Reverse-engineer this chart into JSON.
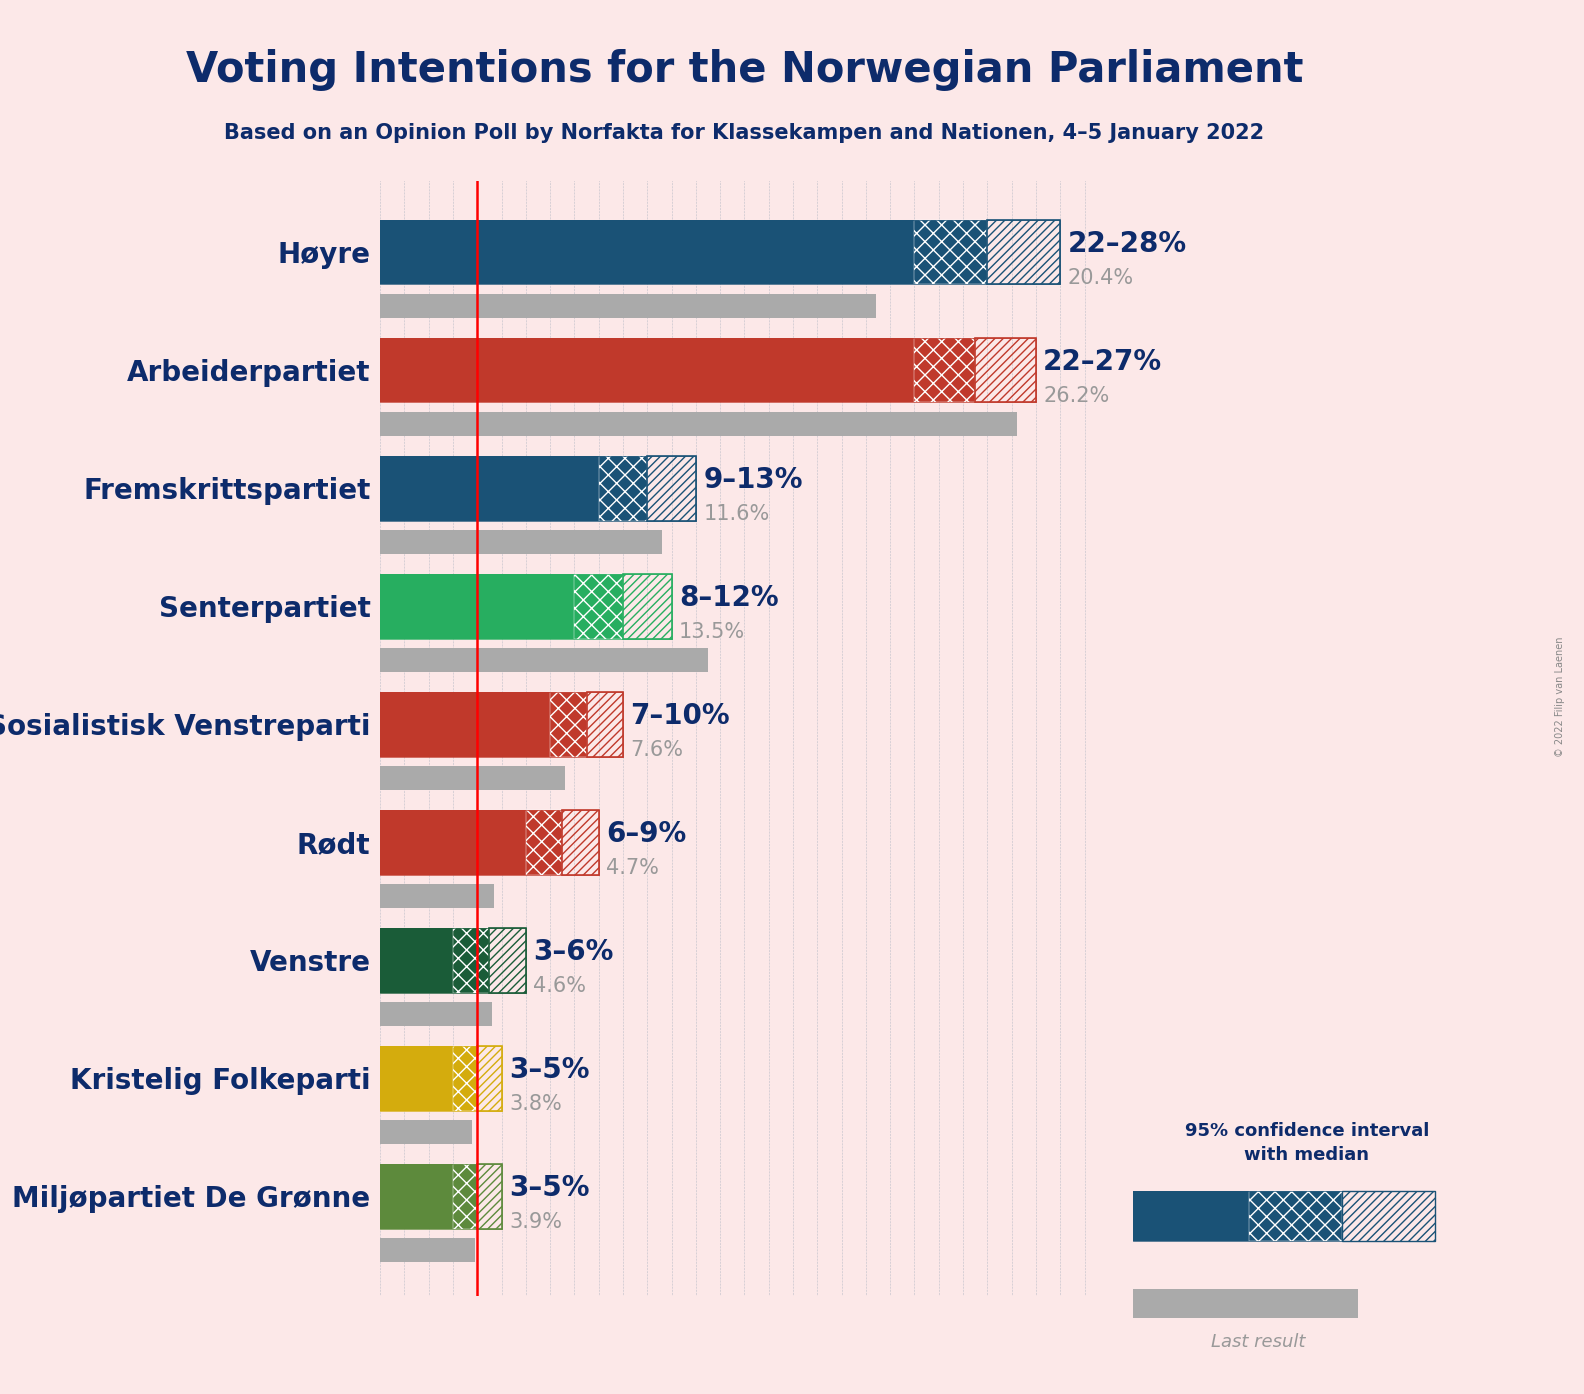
{
  "title": "Voting Intentions for the Norwegian Parliament",
  "subtitle": "Based on an Opinion Poll by Norfakta for Klassekampen and Nationen, 4–5 January 2022",
  "copyright": "© 2022 Filip van Laenen",
  "background_color": "#fce8e8",
  "parties": [
    {
      "name": "Høyre",
      "color": "#1a5276",
      "ci_low": 22,
      "ci_high": 28,
      "median": 25,
      "last_result": 20.4,
      "label": "22–28%",
      "last_label": "20.4%"
    },
    {
      "name": "Arbeiderpartiet",
      "color": "#c0392b",
      "ci_low": 22,
      "ci_high": 27,
      "median": 24.5,
      "last_result": 26.2,
      "label": "22–27%",
      "last_label": "26.2%"
    },
    {
      "name": "Fremskrittspartiet",
      "color": "#1a5276",
      "ci_low": 9,
      "ci_high": 13,
      "median": 11,
      "last_result": 11.6,
      "label": "9–13%",
      "last_label": "11.6%"
    },
    {
      "name": "Senterpartiet",
      "color": "#27ae60",
      "ci_low": 8,
      "ci_high": 12,
      "median": 10,
      "last_result": 13.5,
      "label": "8–12%",
      "last_label": "13.5%"
    },
    {
      "name": "Sosialistisk Venstreparti",
      "color": "#c0392b",
      "ci_low": 7,
      "ci_high": 10,
      "median": 8.5,
      "last_result": 7.6,
      "label": "7–10%",
      "last_label": "7.6%"
    },
    {
      "name": "Rødt",
      "color": "#c0392b",
      "ci_low": 6,
      "ci_high": 9,
      "median": 7.5,
      "last_result": 4.7,
      "label": "6–9%",
      "last_label": "4.7%"
    },
    {
      "name": "Venstre",
      "color": "#1a5c38",
      "ci_low": 3,
      "ci_high": 6,
      "median": 4.5,
      "last_result": 4.6,
      "label": "3–6%",
      "last_label": "4.6%"
    },
    {
      "name": "Kristelig Folkeparti",
      "color": "#d4ac0d",
      "ci_low": 3,
      "ci_high": 5,
      "median": 4,
      "last_result": 3.8,
      "label": "3–5%",
      "last_label": "3.8%"
    },
    {
      "name": "Miljøpartiet De Grønne",
      "color": "#5d8a3c",
      "ci_low": 3,
      "ci_high": 5,
      "median": 4,
      "last_result": 3.9,
      "label": "3–5%",
      "last_label": "3.9%"
    }
  ],
  "red_line_x": 4.0,
  "xlim_max": 30,
  "title_color": "#0d2b6b",
  "label_color": "#0d2b6b",
  "last_result_color": "#999999",
  "title_fontsize": 30,
  "subtitle_fontsize": 15,
  "party_fontsize": 20,
  "label_fontsize": 20,
  "last_label_fontsize": 15,
  "main_bar_height": 0.55,
  "last_bar_height": 0.2,
  "bar_gap": 0.08,
  "grid_color": "#1a5276",
  "last_bar_color": "#aaaaaa"
}
